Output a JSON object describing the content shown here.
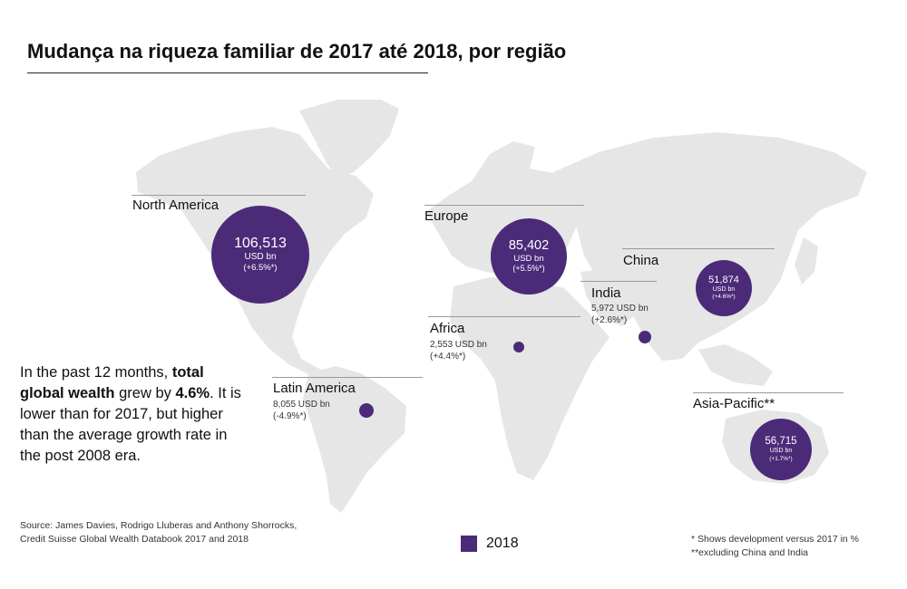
{
  "title": "Mudança na riqueza familiar de 2017 até 2018, por região",
  "note": {
    "p1": "In the past 12 months, ",
    "b1": "total global wealth",
    "p2": " grew by ",
    "b2": "4.6%",
    "p3": ". It is lower than for 2017, but higher than the average growth rate in the post 2008 era."
  },
  "source": {
    "line1": "Source: James Davies, Rodrigo Lluberas and Anthony Shorrocks,",
    "line2": "Credit Suisse Global Wealth Databook 2017 and 2018"
  },
  "legend": {
    "label": "2018",
    "color": "#4b2b78"
  },
  "footnotes": {
    "line1": "* Shows development versus 2017 in %",
    "line2": "**excluding China and India"
  },
  "colors": {
    "bubble": "#4b2b78",
    "land": "#e6e6e6"
  },
  "chart_data": {
    "type": "bubble-map",
    "title": "Mudança na riqueza familiar de 2017 até 2018, por região",
    "unit": "USD bn",
    "series": [
      {
        "name": "2018"
      }
    ],
    "regions": [
      {
        "name": "North America",
        "value": 106513,
        "value_text": "106,513",
        "unit_text": "USD bn",
        "change": 6.5,
        "change_text": "(+6.5%*)"
      },
      {
        "name": "Europe",
        "value": 85402,
        "value_text": "85,402",
        "unit_text": "USD bn",
        "change": 5.5,
        "change_text": "(+5.5%*)"
      },
      {
        "name": "China",
        "value": 51874,
        "value_text": "51,874",
        "unit_text": "USD bn",
        "change": 4.6,
        "change_text": "(+4.6%*)"
      },
      {
        "name": "India",
        "value": 5972,
        "value_text": "5,972 USD bn",
        "unit_text": "",
        "change": 2.6,
        "change_text": "(+2.6%*)"
      },
      {
        "name": "Africa",
        "value": 2553,
        "value_text": "2,553 USD bn",
        "unit_text": "",
        "change": 4.4,
        "change_text": "(+4.4%*)"
      },
      {
        "name": "Latin America",
        "value": 8055,
        "value_text": "8,055 USD bn",
        "unit_text": "",
        "change": -4.9,
        "change_text": "(-4.9%*)"
      },
      {
        "name": "Asia-Pacific**",
        "value": 56715,
        "value_text": "56,715",
        "unit_text": "USD bn",
        "change": 1.7,
        "change_text": "(+1.7%*)"
      }
    ]
  }
}
